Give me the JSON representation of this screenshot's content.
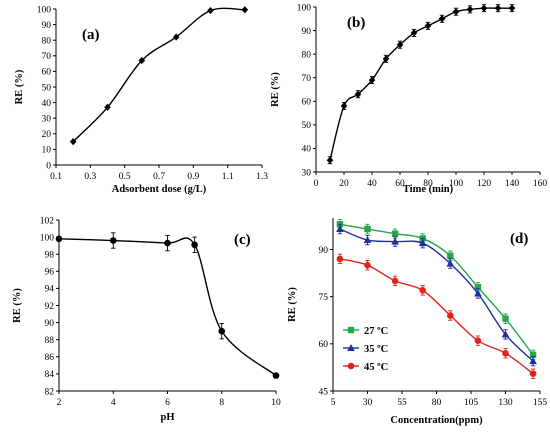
{
  "chart_data": [
    {
      "panel": "(a)",
      "type": "line",
      "xlabel": "Adsorbent dose (g/L)",
      "ylabel": "RE (%)",
      "xlim": [
        0.1,
        1.3
      ],
      "ylim": [
        0,
        100
      ],
      "xticks": [
        "0.1",
        "0.3",
        "0.5",
        "0.7",
        "0.9",
        "1.1",
        "1.3"
      ],
      "yticks": [
        "0",
        "10",
        "20",
        "30",
        "40",
        "50",
        "60",
        "70",
        "80",
        "90",
        "100"
      ],
      "series": [
        {
          "color": "#000000",
          "marker": "diamond",
          "x": [
            0.2,
            0.4,
            0.6,
            0.8,
            1.0,
            1.2
          ],
          "y": [
            15,
            37,
            67,
            82,
            99,
            99.5
          ]
        }
      ]
    },
    {
      "panel": "(b)",
      "type": "line",
      "xlabel": "Time (min)",
      "ylabel": "RE (%)",
      "xlim": [
        0,
        160
      ],
      "ylim": [
        30,
        100
      ],
      "xticks": [
        "0",
        "20",
        "40",
        "60",
        "80",
        "100",
        "120",
        "140",
        "160"
      ],
      "yticks": [
        "30",
        "40",
        "50",
        "60",
        "70",
        "80",
        "90",
        "100"
      ],
      "series": [
        {
          "color": "#000000",
          "marker": "diamond",
          "x": [
            10,
            20,
            30,
            40,
            50,
            60,
            70,
            80,
            90,
            100,
            110,
            120,
            130,
            140
          ],
          "y": [
            35,
            58,
            63,
            69,
            78,
            84,
            89,
            92,
            95,
            98,
            99,
            99.5,
            99.5,
            99.5
          ],
          "err": [
            1.5,
            1.5,
            1.5,
            1.5,
            1.5,
            1.5,
            1.5,
            1.5,
            1.5,
            1.5,
            1.5,
            1.5,
            1.5,
            1.5
          ]
        }
      ]
    },
    {
      "panel": "(c)",
      "type": "line",
      "xlabel": "pH",
      "ylabel": "RE (%)",
      "xlim": [
        2,
        10
      ],
      "ylim": [
        82,
        102
      ],
      "xticks": [
        "2",
        "4",
        "6",
        "8",
        "10"
      ],
      "yticks": [
        "82",
        "84",
        "86",
        "88",
        "90",
        "92",
        "94",
        "96",
        "98",
        "100",
        "102"
      ],
      "series": [
        {
          "color": "#000000",
          "marker": "circle",
          "x": [
            2,
            4,
            6,
            7,
            8,
            10
          ],
          "y": [
            99.8,
            99.6,
            99.3,
            99.1,
            89,
            83.8
          ],
          "err": [
            0,
            0.9,
            0.9,
            0.9,
            0.9,
            0
          ]
        }
      ]
    },
    {
      "panel": "(d)",
      "type": "line",
      "xlabel": "Concentration(ppm)",
      "ylabel": "RE (%)",
      "xlim": [
        5,
        155
      ],
      "ylim": [
        45,
        100
      ],
      "xticks": [
        "5",
        "30",
        "55",
        "80",
        "105",
        "130",
        "155"
      ],
      "xtick_labels": [
        "5",
        "30",
        "55",
        "80",
        "105",
        "130",
        "155"
      ],
      "yticks": [
        "45",
        "60",
        "75",
        "90"
      ],
      "legend": "center-left",
      "series": [
        {
          "name": "27 ºC",
          "color": "#22a84a",
          "marker": "square",
          "x": [
            10,
            30,
            50,
            70,
            90,
            110,
            130,
            150
          ],
          "y": [
            98,
            96.5,
            95,
            93.5,
            88,
            78,
            68,
            56.5
          ],
          "err": [
            1.5,
            1.5,
            1.5,
            1.5,
            1.5,
            1.5,
            1.5,
            1.5
          ]
        },
        {
          "name": "35 ºC",
          "color": "#1f2f9c",
          "marker": "triangle",
          "x": [
            10,
            30,
            50,
            70,
            90,
            110,
            130,
            150
          ],
          "y": [
            96.5,
            93,
            92.5,
            92,
            85.5,
            76,
            63,
            54.5
          ],
          "err": [
            1.5,
            1.5,
            1.5,
            1.5,
            1.5,
            1.5,
            1.5,
            1.5
          ]
        },
        {
          "name": "45 ºC",
          "color": "#e2231a",
          "marker": "circle",
          "x": [
            10,
            30,
            50,
            70,
            90,
            110,
            130,
            150
          ],
          "y": [
            87,
            85,
            80,
            77,
            69,
            61,
            57,
            50.5
          ],
          "err": [
            1.5,
            1.5,
            1.5,
            1.5,
            1.5,
            1.5,
            1.5,
            1.5
          ]
        }
      ]
    }
  ]
}
